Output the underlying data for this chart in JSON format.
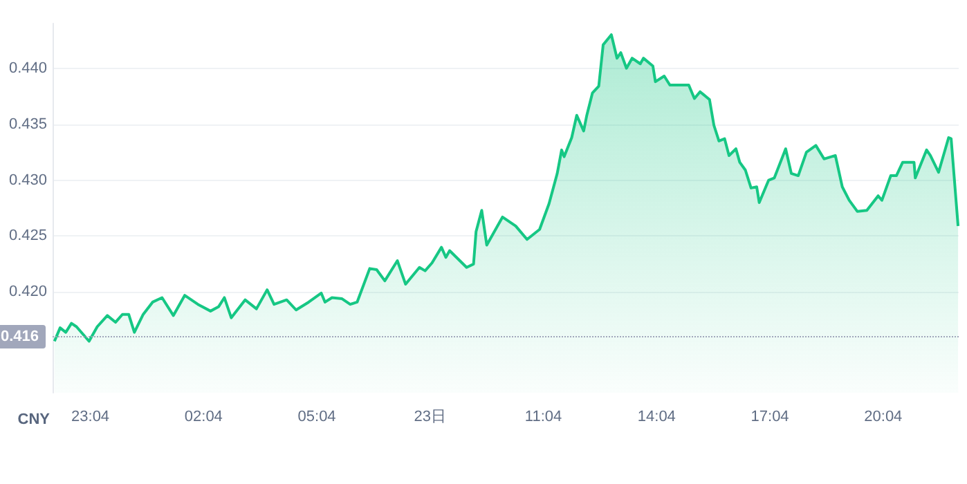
{
  "chart_data": {
    "type": "area",
    "ylabel": "CNY",
    "color": "#16c784",
    "x": [
      "--01-22T22:07",
      "--01-22T22:16",
      "--01-22T22:25",
      "--01-22T22:34",
      "--01-22T22:42",
      "--01-22T23:02",
      "--01-22T23:15",
      "--01-22T23:31",
      "--01-22T23:44",
      "--01-22T23:55",
      "--01-23T00:05",
      "--01-23T00:14",
      "--01-23T00:28",
      "--01-23T00:43",
      "--01-23T00:58",
      "--01-23T01:16",
      "--01-23T01:34",
      "--01-23T01:55",
      "--01-23T02:15",
      "--01-23T02:28",
      "--01-23T02:37",
      "--01-23T02:48",
      "--01-23T03:10",
      "--01-23T03:28",
      "--01-23T03:45",
      "--01-23T03:56",
      "--01-23T04:16",
      "--01-23T04:31",
      "--01-23T04:51",
      "--01-23T05:11",
      "--01-23T05:17",
      "--01-23T05:28",
      "--01-23T05:44",
      "--01-23T05:57",
      "--01-23T06:08",
      "--01-23T06:28",
      "--01-23T06:39",
      "--01-23T06:52",
      "--01-23T07:12",
      "--01-23T07:25",
      "--01-23T07:47",
      "--01-23T07:56",
      "--01-23T08:07",
      "--01-23T08:22",
      "--01-23T08:29",
      "--01-23T08:35",
      "--01-23T09:02",
      "--01-23T09:13",
      "--01-23T09:17",
      "--01-23T09:26",
      "--01-23T09:34",
      "--01-23T09:59",
      "--01-23T10:20",
      "--01-23T10:38",
      "--01-23T10:58",
      "--01-23T11:13",
      "--01-23T11:26",
      "--01-23T11:33",
      "--01-23T11:37",
      "--01-23T11:49",
      "--01-23T11:57",
      "--01-23T12:08",
      "--01-23T12:13",
      "--01-23T12:22",
      "--01-23T12:32",
      "--01-23T12:39",
      "--01-23T12:52",
      "--01-23T13:01",
      "--01-23T13:07",
      "--01-23T13:16",
      "--01-23T13:25",
      "--01-23T13:38",
      "--01-23T13:43",
      "--01-23T13:58",
      "--01-23T14:02",
      "--01-23T14:16",
      "--01-23T14:25",
      "--01-23T14:55",
      "--01-23T15:04",
      "--01-23T15:13",
      "--01-23T15:28",
      "--01-23T15:35",
      "--01-23T15:43",
      "--01-23T15:52",
      "--01-23T15:59",
      "--01-23T16:10",
      "--01-23T16:16",
      "--01-23T16:25",
      "--01-23T16:34",
      "--01-23T16:43",
      "--01-23T16:47",
      "--01-23T17:02",
      "--01-23T17:11",
      "--01-23T17:29",
      "--01-23T17:38",
      "--01-23T17:49",
      "--01-23T18:02",
      "--01-23T18:17",
      "--01-23T18:30",
      "--01-23T18:48",
      "--01-23T18:59",
      "--01-23T19:10",
      "--01-23T19:23",
      "--01-23T19:38",
      "--01-23T19:56",
      "--01-23T20:02",
      "--01-23T20:16",
      "--01-23T20:25",
      "--01-23T20:35",
      "--01-23T20:53",
      "--01-23T20:55",
      "--01-23T21:13",
      "--01-23T21:19",
      "--01-23T21:32",
      "--01-23T21:48",
      "--01-23T21:52",
      "--01-23T22:03"
    ],
    "values": [
      0.4156,
      0.4168,
      0.4164,
      0.4172,
      0.4169,
      0.4156,
      0.4169,
      0.4179,
      0.4173,
      0.418,
      0.418,
      0.4164,
      0.418,
      0.4191,
      0.4195,
      0.4179,
      0.4197,
      0.4189,
      0.4183,
      0.4187,
      0.4195,
      0.4177,
      0.4193,
      0.4185,
      0.4202,
      0.4189,
      0.4193,
      0.4184,
      0.4191,
      0.4199,
      0.4191,
      0.4195,
      0.4194,
      0.4189,
      0.4191,
      0.4221,
      0.422,
      0.421,
      0.4228,
      0.4207,
      0.4222,
      0.4219,
      0.4226,
      0.424,
      0.4231,
      0.4237,
      0.4222,
      0.4225,
      0.4254,
      0.4273,
      0.4242,
      0.4267,
      0.4259,
      0.4247,
      0.4256,
      0.4279,
      0.4306,
      0.4327,
      0.4321,
      0.4338,
      0.4358,
      0.4344,
      0.4358,
      0.4378,
      0.4384,
      0.4421,
      0.443,
      0.4409,
      0.4414,
      0.44,
      0.4409,
      0.4404,
      0.4409,
      0.4402,
      0.4388,
      0.4393,
      0.4385,
      0.4385,
      0.4373,
      0.4379,
      0.4372,
      0.4349,
      0.4335,
      0.4337,
      0.4322,
      0.4328,
      0.4316,
      0.4309,
      0.4293,
      0.4294,
      0.428,
      0.43,
      0.4302,
      0.4328,
      0.4306,
      0.4304,
      0.4325,
      0.4331,
      0.4319,
      0.4322,
      0.4294,
      0.4282,
      0.4272,
      0.4273,
      0.4286,
      0.4282,
      0.4304,
      0.4304,
      0.4316,
      0.4316,
      0.4302,
      0.4327,
      0.4322,
      0.4307,
      0.4338,
      0.4337,
      0.4259
    ],
    "xlim": [
      "--01-22T22:04",
      "--01-23T22:04"
    ],
    "xticks": [
      {
        "value": "--01-22T23:04",
        "label": "23:04"
      },
      {
        "value": "--01-23T02:04",
        "label": "02:04"
      },
      {
        "value": "--01-23T05:04",
        "label": "05:04"
      },
      {
        "value": "--01-23T08:04",
        "label": "23日"
      },
      {
        "value": "--01-23T11:04",
        "label": "11:04"
      },
      {
        "value": "--01-23T14:04",
        "label": "14:04"
      },
      {
        "value": "--01-23T17:04",
        "label": "17:04"
      },
      {
        "value": "--01-23T20:04",
        "label": "20:04"
      }
    ],
    "ylim": [
      0.411,
      0.444
    ],
    "yticks": [
      {
        "value": 0.42,
        "label": "0.420"
      },
      {
        "value": 0.425,
        "label": "0.425"
      },
      {
        "value": 0.43,
        "label": "0.430"
      },
      {
        "value": 0.435,
        "label": "0.435"
      },
      {
        "value": 0.44,
        "label": "0.440"
      }
    ],
    "ref_lines": [
      {
        "axis": "y",
        "value": 0.416,
        "label": "0.416",
        "line_style": "dotted",
        "color": "#a1a7bb"
      }
    ],
    "grid": "y"
  }
}
